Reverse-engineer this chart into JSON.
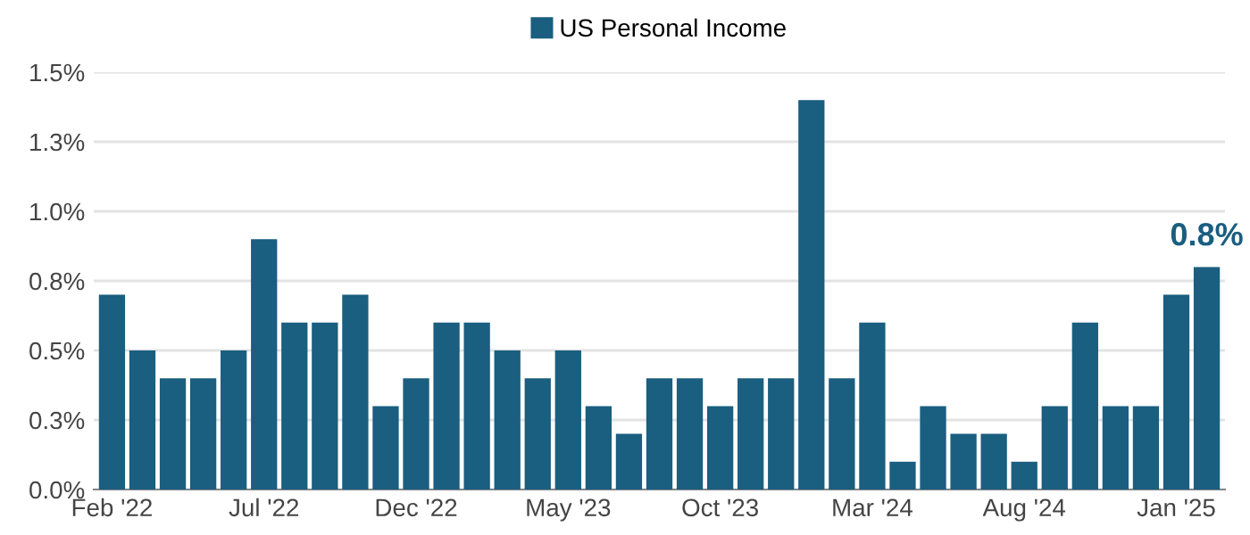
{
  "chart_data": {
    "type": "bar",
    "categories": [
      "Feb '22",
      null,
      null,
      null,
      null,
      "Jul '22",
      null,
      null,
      null,
      null,
      "Dec '22",
      null,
      null,
      null,
      null,
      "May '23",
      null,
      null,
      null,
      null,
      "Oct '23",
      null,
      null,
      null,
      null,
      "Mar '24",
      null,
      null,
      null,
      null,
      "Aug '24",
      null,
      null,
      null,
      null,
      "Jan '25",
      null
    ],
    "series": [
      {
        "name": "US Personal Income",
        "color": "#1a5e80",
        "values": [
          0.7,
          0.5,
          0.4,
          0.4,
          0.5,
          0.9,
          0.6,
          0.6,
          0.7,
          0.3,
          0.4,
          0.6,
          0.6,
          0.5,
          0.4,
          0.5,
          0.3,
          0.2,
          0.4,
          0.4,
          0.3,
          0.4,
          0.4,
          1.4,
          0.4,
          0.6,
          0.1,
          0.3,
          0.2,
          0.2,
          0.1,
          0.3,
          0.6,
          0.3,
          0.3,
          0.7,
          0.8
        ],
        "value_labels": [
          null,
          null,
          null,
          null,
          null,
          null,
          null,
          null,
          null,
          null,
          null,
          null,
          null,
          null,
          null,
          null,
          null,
          null,
          null,
          null,
          null,
          null,
          null,
          null,
          null,
          null,
          null,
          null,
          null,
          null,
          null,
          null,
          null,
          null,
          null,
          null,
          "0.8%"
        ]
      }
    ],
    "ylim": [
      0,
      1.5
    ],
    "yticks": [
      {
        "value": 0,
        "label": "0.0%"
      },
      {
        "value": 0.25,
        "label": "0.3%"
      },
      {
        "value": 0.5,
        "label": "0.5%"
      },
      {
        "value": 0.75,
        "label": "0.8%"
      },
      {
        "value": 1.0,
        "label": "1.0%"
      },
      {
        "value": 1.25,
        "label": "1.3%"
      },
      {
        "value": 1.5,
        "label": "1.5%"
      }
    ],
    "grid": "y",
    "legend": "top"
  }
}
